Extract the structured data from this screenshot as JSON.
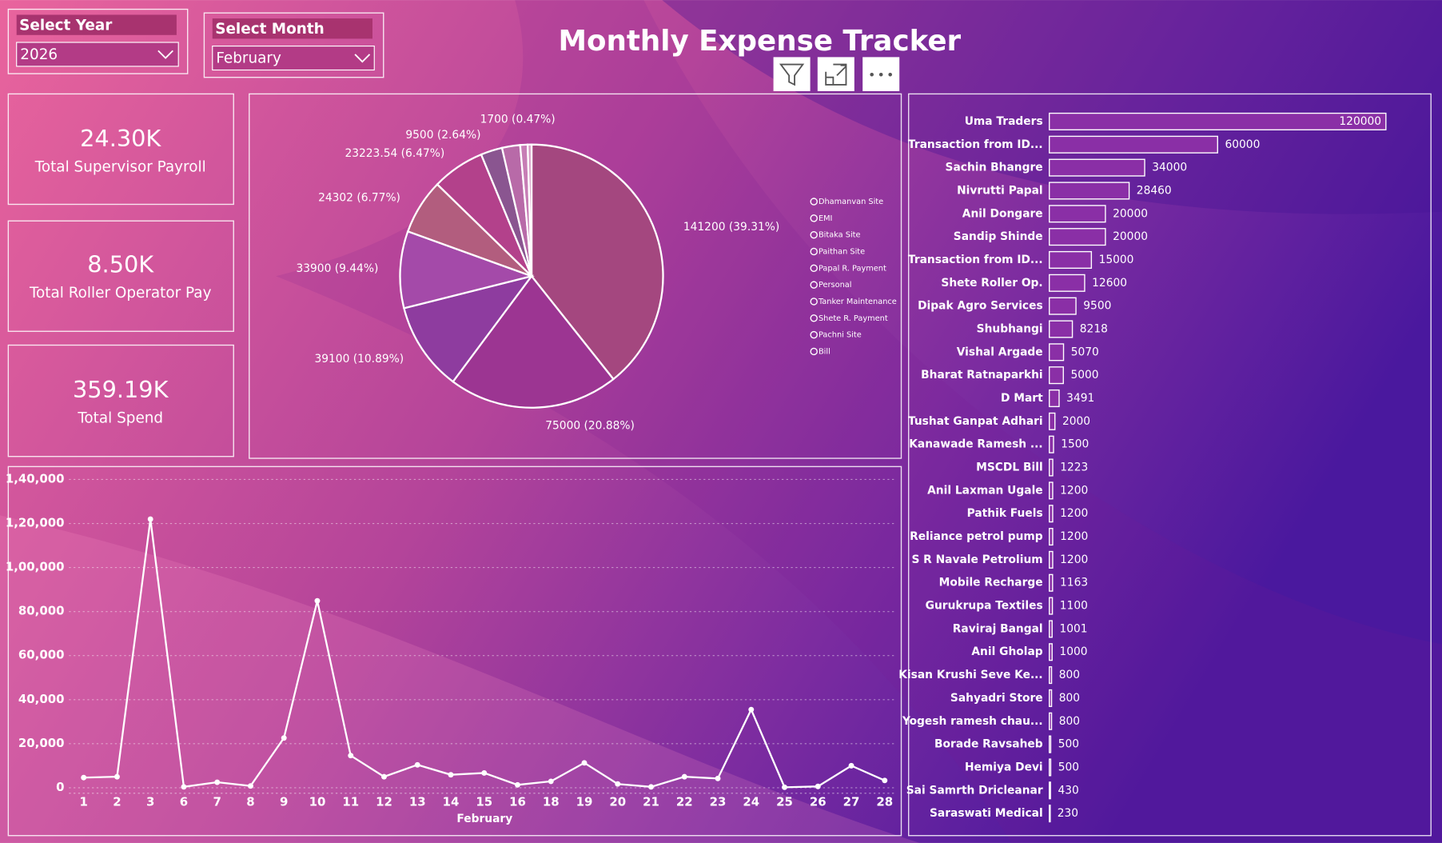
{
  "title": "Monthly Expense Tracker",
  "filters": [
    {
      "label": "Select Year",
      "value": "2026"
    },
    {
      "label": "Select Month",
      "value": "February"
    }
  ],
  "cards": [
    {
      "value": "24.30K",
      "label": "Total Supervisor Payroll"
    },
    {
      "value": "8.50K",
      "label": "Total Roller Operator Pay"
    },
    {
      "value": "359.19K",
      "label": "Total Spend"
    }
  ],
  "chart_data": [
    {
      "type": "pie",
      "categories": [
        "Dhamanvan Site",
        "EMI",
        "Bitaka Site",
        "Paithan Site",
        "Papal R. Payment",
        "Personal",
        "Tanker Maintenance",
        "Shete R. Payment",
        "Pachni Site",
        "Bill"
      ],
      "values": [
        141200,
        75000,
        39100,
        33900,
        24302,
        23223.54,
        9500,
        8000,
        3264,
        1700
      ],
      "value_labels": [
        "141200 (39.31%)",
        "75000 (20.88%)",
        "39100 (10.89%)",
        "33900 (9.44%)",
        "24302 (6.77%)",
        "23223.54 (6.47%)",
        "9500 (2.64%)",
        null,
        null,
        "1700 (0.47%)"
      ],
      "colors": [
        "#a4477f",
        "#9c3592",
        "#8e3c9f",
        "#a44aa9",
        "#b25d7e",
        "#b3418b",
        "#8a5590",
        "#b86aa8",
        "#c77db5",
        "#d69ac4"
      ]
    },
    {
      "type": "line",
      "categories": [
        "1",
        "2",
        "3",
        "6",
        "7",
        "8",
        "9",
        "10",
        "11",
        "12",
        "13",
        "14",
        "15",
        "16",
        "18",
        "19",
        "20",
        "21",
        "22",
        "23",
        "24",
        "25",
        "26",
        "27",
        "28"
      ],
      "values": [
        4600,
        5000,
        122000,
        400,
        2500,
        800,
        22600,
        84900,
        14600,
        5000,
        10400,
        5900,
        6700,
        1300,
        2900,
        11300,
        1700,
        400,
        5000,
        4200,
        35500,
        200,
        600,
        10000,
        3300
      ],
      "x_label": "February",
      "color": "#ffffff",
      "ylim": [
        0,
        140000
      ],
      "yticks": [
        0,
        {
          "value": 20000,
          "label": "20,000"
        },
        {
          "value": 40000,
          "label": "40,000"
        },
        {
          "value": 60000,
          "label": "60,000"
        },
        {
          "value": 80000,
          "label": "80,000"
        },
        {
          "value": 100000,
          "label": "1,00,000"
        },
        {
          "value": 120000,
          "label": "1,20,000"
        },
        {
          "value": 140000,
          "label": "1,40,000"
        }
      ],
      "grid": true
    },
    {
      "type": "hbar",
      "categories": [
        "Uma Traders",
        "Transaction from ID...",
        "Sachin Bhangre",
        "Nivrutti Papal",
        "Anil Dongare",
        "Sandip Shinde",
        "Transaction from ID...",
        "Shete Roller Op.",
        "Dipak Agro Services",
        "Shubhangi",
        "Vishal Argade",
        "Bharat Ratnaparkhi",
        "D Mart",
        "Tushat Ganpat Adhari",
        "Kanawade Ramesh ...",
        "MSCDL Bill",
        "Anil Laxman Ugale",
        "Pathik Fuels",
        "Reliance petrol pump",
        "S R Navale Petrolium",
        "Mobile Recharge",
        "Gurukrupa Textiles",
        "Raviraj Bangal",
        "Anil Gholap",
        "Kisan Krushi Seve Ke...",
        "Sahyadri Store",
        "Yogesh ramesh chau...",
        "Borade Ravsaheb",
        "Hemiya Devi",
        "Sai Samrth Dricleanar",
        "Saraswati Medical"
      ],
      "values": [
        120000,
        60000,
        34000,
        28460,
        20000,
        20000,
        15000,
        12600,
        9500,
        8218,
        5070,
        5000,
        3491,
        2000,
        1500,
        1223,
        1200,
        1200,
        1200,
        1200,
        1163,
        1100,
        1001,
        1000,
        800,
        800,
        800,
        500,
        500,
        430,
        230
      ],
      "xlim": [
        0,
        120000
      ],
      "color": "#8a2fa6"
    }
  ]
}
